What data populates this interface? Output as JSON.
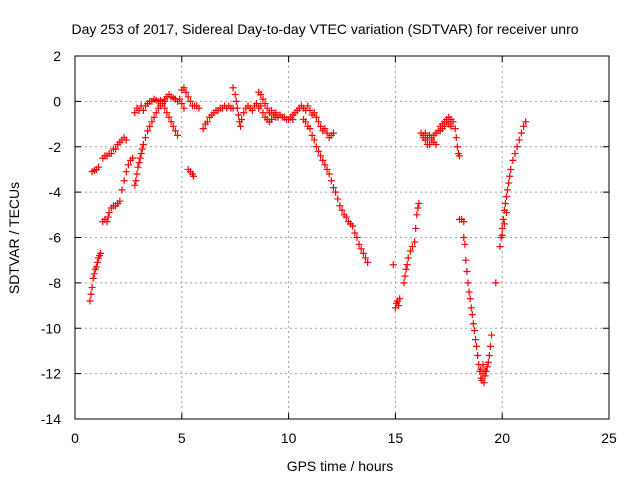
{
  "chart_data": {
    "type": "scatter",
    "title": "Day 253 of 2017, Sidereal Day-to-day VTEC variation (SDTVAR) for receiver unro",
    "xlabel": "GPS time / hours",
    "ylabel": "SDTVAR / TECUs",
    "xlim": [
      0,
      25
    ],
    "ylim": [
      -14,
      2
    ],
    "xticks": [
      0,
      5,
      10,
      15,
      20,
      25
    ],
    "yticks": [
      -14,
      -12,
      -10,
      -8,
      -6,
      -4,
      -2,
      0,
      2
    ],
    "xtick_labels": [
      "0",
      "5",
      "10",
      "15",
      "20",
      "25"
    ],
    "ytick_labels": [
      "-14",
      "-12",
      "-10",
      "-8",
      "-6",
      "-4",
      "-2",
      "0",
      "2"
    ],
    "grid": true,
    "marker": "plus",
    "marker_color": "#ff0000",
    "series": [
      {
        "values": [
          [
            0.7,
            -8.8
          ],
          [
            0.75,
            -8.5
          ],
          [
            0.8,
            -8.2
          ],
          [
            0.85,
            -7.8
          ],
          [
            0.9,
            -7.6
          ],
          [
            0.95,
            -7.4
          ],
          [
            1.0,
            -7.3
          ],
          [
            1.05,
            -7.1
          ],
          [
            1.1,
            -6.9
          ],
          [
            1.15,
            -6.8
          ],
          [
            1.2,
            -6.7
          ],
          [
            0.8,
            -3.1
          ],
          [
            0.9,
            -3.05
          ],
          [
            1.0,
            -3.0
          ],
          [
            1.1,
            -2.9
          ],
          [
            1.3,
            -5.3
          ],
          [
            1.4,
            -5.2
          ],
          [
            1.5,
            -5.3
          ],
          [
            1.55,
            -5.1
          ],
          [
            1.6,
            -4.9
          ],
          [
            1.7,
            -4.7
          ],
          [
            1.8,
            -4.6
          ],
          [
            1.9,
            -4.6
          ],
          [
            2.0,
            -4.5
          ],
          [
            2.1,
            -4.4
          ],
          [
            1.3,
            -2.5
          ],
          [
            1.4,
            -2.4
          ],
          [
            1.5,
            -2.4
          ],
          [
            1.6,
            -2.3
          ],
          [
            1.7,
            -2.3
          ],
          [
            1.8,
            -2.1
          ],
          [
            1.9,
            -2.1
          ],
          [
            2.0,
            -1.9
          ],
          [
            2.1,
            -1.8
          ],
          [
            2.2,
            -1.7
          ],
          [
            2.3,
            -1.6
          ],
          [
            2.4,
            -1.7
          ],
          [
            2.2,
            -3.9
          ],
          [
            2.3,
            -3.5
          ],
          [
            2.4,
            -3.1
          ],
          [
            2.5,
            -2.8
          ],
          [
            2.6,
            -2.6
          ],
          [
            2.7,
            -2.5
          ],
          [
            2.8,
            -3.7
          ],
          [
            2.85,
            -3.5
          ],
          [
            2.9,
            -3.2
          ],
          [
            2.95,
            -2.9
          ],
          [
            3.0,
            -2.7
          ],
          [
            3.05,
            -2.5
          ],
          [
            3.1,
            -2.3
          ],
          [
            3.15,
            -2.1
          ],
          [
            3.2,
            -1.9
          ],
          [
            3.3,
            -1.6
          ],
          [
            3.4,
            -1.3
          ],
          [
            3.5,
            -1.1
          ],
          [
            3.6,
            -0.9
          ],
          [
            3.7,
            -0.7
          ],
          [
            3.8,
            -0.5
          ],
          [
            3.9,
            -0.3
          ],
          [
            4.0,
            -0.2
          ],
          [
            4.1,
            -0.1
          ],
          [
            4.2,
            0.0
          ],
          [
            2.8,
            -0.5
          ],
          [
            2.9,
            -0.3
          ],
          [
            3.0,
            -0.4
          ],
          [
            3.1,
            -0.2
          ],
          [
            3.2,
            -0.4
          ],
          [
            3.3,
            -0.2
          ],
          [
            3.4,
            -0.1
          ],
          [
            3.5,
            0.0
          ],
          [
            3.6,
            0.0
          ],
          [
            3.7,
            0.1
          ],
          [
            3.8,
            0.05
          ],
          [
            3.9,
            0.0
          ],
          [
            4.0,
            0.05
          ],
          [
            4.2,
            0.1
          ],
          [
            4.3,
            0.2
          ],
          [
            4.4,
            0.3
          ],
          [
            4.5,
            0.2
          ],
          [
            4.6,
            0.15
          ],
          [
            4.7,
            0.1
          ],
          [
            4.8,
            0.0
          ],
          [
            4.9,
            0.1
          ],
          [
            5.0,
            -0.1
          ],
          [
            5.1,
            -0.3
          ],
          [
            4.2,
            -0.3
          ],
          [
            4.3,
            -0.5
          ],
          [
            4.4,
            -0.7
          ],
          [
            4.5,
            -0.9
          ],
          [
            4.6,
            -1.1
          ],
          [
            4.7,
            -1.3
          ],
          [
            4.8,
            -1.5
          ],
          [
            5.0,
            0.5
          ],
          [
            5.1,
            0.6
          ],
          [
            5.2,
            0.4
          ],
          [
            5.3,
            0.2
          ],
          [
            5.4,
            0.0
          ],
          [
            5.5,
            -0.2
          ],
          [
            5.6,
            -0.2
          ],
          [
            5.7,
            -0.2
          ],
          [
            5.8,
            -0.3
          ],
          [
            5.3,
            -3.0
          ],
          [
            5.4,
            -3.1
          ],
          [
            5.5,
            -3.2
          ],
          [
            5.55,
            -3.3
          ],
          [
            6.0,
            -1.2
          ],
          [
            6.1,
            -1.0
          ],
          [
            6.2,
            -0.9
          ],
          [
            6.3,
            -0.7
          ],
          [
            6.4,
            -0.6
          ],
          [
            6.5,
            -0.5
          ],
          [
            6.6,
            -0.4
          ],
          [
            6.7,
            -0.4
          ],
          [
            6.8,
            -0.3
          ],
          [
            6.9,
            -0.3
          ],
          [
            7.0,
            -0.2
          ],
          [
            7.1,
            -0.3
          ],
          [
            7.2,
            -0.2
          ],
          [
            7.3,
            -0.3
          ],
          [
            7.4,
            -0.3
          ],
          [
            7.4,
            0.6
          ],
          [
            7.5,
            0.3
          ],
          [
            7.55,
            0.0
          ],
          [
            7.6,
            -0.3
          ],
          [
            7.65,
            -0.6
          ],
          [
            7.7,
            -0.9
          ],
          [
            7.75,
            -1.1
          ],
          [
            7.8,
            -0.8
          ],
          [
            7.9,
            -0.5
          ],
          [
            8.0,
            -0.3
          ],
          [
            8.1,
            -0.2
          ],
          [
            8.2,
            -0.3
          ],
          [
            8.3,
            -0.4
          ],
          [
            8.4,
            -0.2
          ],
          [
            8.5,
            -0.1
          ],
          [
            8.6,
            0.4
          ],
          [
            8.7,
            0.3
          ],
          [
            8.8,
            0.1
          ],
          [
            8.9,
            -0.1
          ],
          [
            9.0,
            -0.3
          ],
          [
            9.1,
            -0.5
          ],
          [
            9.2,
            -0.4
          ],
          [
            9.3,
            -0.6
          ],
          [
            9.4,
            -0.5
          ],
          [
            9.5,
            -0.7
          ],
          [
            9.6,
            -0.6
          ],
          [
            9.7,
            -0.7
          ],
          [
            9.8,
            -0.7
          ],
          [
            9.9,
            -0.8
          ],
          [
            10.0,
            -0.8
          ],
          [
            10.1,
            -0.7
          ],
          [
            10.2,
            -0.8
          ],
          [
            8.6,
            -0.3
          ],
          [
            8.7,
            -0.2
          ],
          [
            8.8,
            -0.5
          ],
          [
            8.9,
            -0.7
          ],
          [
            9.0,
            -0.8
          ],
          [
            9.1,
            -0.9
          ],
          [
            9.2,
            -0.8
          ],
          [
            9.3,
            -0.6
          ],
          [
            9.4,
            -0.7
          ],
          [
            10.2,
            -0.6
          ],
          [
            10.3,
            -0.5
          ],
          [
            10.4,
            -0.4
          ],
          [
            10.5,
            -0.3
          ],
          [
            10.6,
            -0.2
          ],
          [
            10.7,
            -0.3
          ],
          [
            10.8,
            -0.4
          ],
          [
            10.9,
            -0.2
          ],
          [
            11.0,
            -0.4
          ],
          [
            11.1,
            -0.6
          ],
          [
            11.2,
            -0.5
          ],
          [
            11.3,
            -0.7
          ],
          [
            11.4,
            -0.9
          ],
          [
            11.5,
            -1.1
          ],
          [
            11.6,
            -1.3
          ],
          [
            11.7,
            -1.2
          ],
          [
            11.8,
            -1.4
          ],
          [
            11.9,
            -1.6
          ],
          [
            12.0,
            -1.5
          ],
          [
            12.1,
            -1.4
          ],
          [
            10.7,
            -0.8
          ],
          [
            10.8,
            -0.9
          ],
          [
            10.9,
            -1.1
          ],
          [
            11.0,
            -1.2
          ],
          [
            11.1,
            -1.5
          ],
          [
            11.2,
            -1.7
          ],
          [
            11.3,
            -2.0
          ],
          [
            11.4,
            -2.2
          ],
          [
            11.5,
            -2.4
          ],
          [
            11.6,
            -2.6
          ],
          [
            11.7,
            -2.8
          ],
          [
            11.8,
            -3.0
          ],
          [
            11.9,
            -3.2
          ],
          [
            12.0,
            -3.5
          ],
          [
            12.1,
            -3.8
          ],
          [
            12.2,
            -4.0
          ],
          [
            12.3,
            -4.3
          ],
          [
            12.4,
            -4.6
          ],
          [
            12.5,
            -4.8
          ],
          [
            12.6,
            -5.0
          ],
          [
            12.7,
            -5.1
          ],
          [
            12.8,
            -5.3
          ],
          [
            12.9,
            -5.4
          ],
          [
            13.0,
            -5.5
          ],
          [
            13.1,
            -5.8
          ],
          [
            13.2,
            -6.0
          ],
          [
            13.3,
            -6.3
          ],
          [
            13.4,
            -6.5
          ],
          [
            13.5,
            -6.7
          ],
          [
            13.6,
            -6.9
          ],
          [
            13.7,
            -7.1
          ],
          [
            14.9,
            -7.2
          ],
          [
            15.0,
            -9.1
          ],
          [
            15.05,
            -8.9
          ],
          [
            15.1,
            -8.8
          ],
          [
            15.15,
            -9.0
          ],
          [
            15.2,
            -8.7
          ],
          [
            15.4,
            -8.0
          ],
          [
            15.45,
            -7.7
          ],
          [
            15.5,
            -7.4
          ],
          [
            15.55,
            -7.2
          ],
          [
            15.6,
            -6.9
          ],
          [
            15.7,
            -6.6
          ],
          [
            15.8,
            -6.4
          ],
          [
            15.9,
            -6.2
          ],
          [
            15.95,
            -5.6
          ],
          [
            16.0,
            -5.0
          ],
          [
            16.05,
            -4.7
          ],
          [
            16.1,
            -4.5
          ],
          [
            16.2,
            -1.4
          ],
          [
            16.3,
            -1.5
          ],
          [
            16.4,
            -1.7
          ],
          [
            16.5,
            -1.9
          ],
          [
            16.6,
            -1.9
          ],
          [
            16.7,
            -1.7
          ],
          [
            16.8,
            -1.8
          ],
          [
            16.9,
            -1.9
          ],
          [
            16.3,
            -1.6
          ],
          [
            16.4,
            -1.4
          ],
          [
            16.5,
            -1.6
          ],
          [
            16.6,
            -1.5
          ],
          [
            16.7,
            -1.6
          ],
          [
            16.8,
            -1.5
          ],
          [
            16.9,
            -1.4
          ],
          [
            17.0,
            -1.3
          ],
          [
            17.1,
            -1.1
          ],
          [
            17.2,
            -1.0
          ],
          [
            17.3,
            -0.9
          ],
          [
            17.4,
            -0.8
          ],
          [
            17.5,
            -0.7
          ],
          [
            17.6,
            -0.8
          ],
          [
            17.7,
            -0.9
          ],
          [
            17.8,
            -1.2
          ],
          [
            17.85,
            -1.6
          ],
          [
            17.9,
            -2.0
          ],
          [
            17.95,
            -2.3
          ],
          [
            18.0,
            -2.4
          ],
          [
            17.1,
            -1.3
          ],
          [
            17.2,
            -1.2
          ],
          [
            17.3,
            -1.1
          ],
          [
            17.4,
            -0.9
          ],
          [
            17.5,
            -1.0
          ],
          [
            17.6,
            -1.1
          ],
          [
            18.0,
            -5.2
          ],
          [
            18.1,
            -5.2
          ],
          [
            18.2,
            -5.3
          ],
          [
            18.2,
            -6.0
          ],
          [
            18.25,
            -6.3
          ],
          [
            18.3,
            -7.0
          ],
          [
            18.35,
            -7.5
          ],
          [
            18.4,
            -8.0
          ],
          [
            18.45,
            -8.4
          ],
          [
            18.5,
            -8.7
          ],
          [
            18.55,
            -9.1
          ],
          [
            18.6,
            -9.4
          ],
          [
            18.65,
            -9.8
          ],
          [
            18.7,
            -10.1
          ],
          [
            18.75,
            -10.5
          ],
          [
            18.8,
            -10.8
          ],
          [
            18.85,
            -11.2
          ],
          [
            18.9,
            -11.6
          ],
          [
            18.95,
            -11.9
          ],
          [
            19.0,
            -12.2
          ],
          [
            19.05,
            -12.3
          ],
          [
            19.1,
            -12.0
          ],
          [
            19.15,
            -12.4
          ],
          [
            19.2,
            -12.1
          ],
          [
            19.25,
            -11.9
          ],
          [
            19.3,
            -11.7
          ],
          [
            19.35,
            -11.5
          ],
          [
            19.4,
            -11.2
          ],
          [
            19.45,
            -10.8
          ],
          [
            19.5,
            -10.3
          ],
          [
            19.0,
            -11.8
          ],
          [
            19.1,
            -11.6
          ],
          [
            19.2,
            -11.9
          ],
          [
            19.7,
            -8.0
          ],
          [
            19.9,
            -6.4
          ],
          [
            19.95,
            -6.0
          ],
          [
            20.0,
            -5.6
          ],
          [
            20.05,
            -5.2
          ],
          [
            20.1,
            -4.8
          ],
          [
            20.15,
            -4.5
          ],
          [
            20.2,
            -4.2
          ],
          [
            20.25,
            -3.9
          ],
          [
            20.3,
            -3.6
          ],
          [
            20.35,
            -3.3
          ],
          [
            20.4,
            -3.0
          ],
          [
            20.5,
            -2.6
          ],
          [
            20.6,
            -2.3
          ],
          [
            20.7,
            -2.0
          ],
          [
            20.8,
            -1.7
          ],
          [
            20.9,
            -1.4
          ],
          [
            21.0,
            -1.1
          ],
          [
            21.1,
            -0.9
          ],
          [
            20.0,
            -5.9
          ],
          [
            20.1,
            -5.4
          ],
          [
            20.2,
            -4.9
          ]
        ]
      }
    ]
  }
}
